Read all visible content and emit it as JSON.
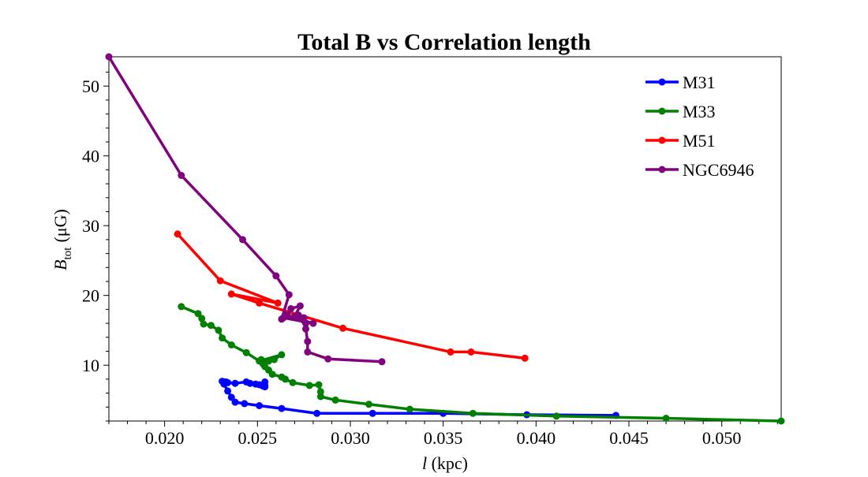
{
  "chart_data": {
    "type": "line",
    "title": "Total B vs Correlation length",
    "xlabel": {
      "var": "l",
      "unit": " (kpc)"
    },
    "ylabel": {
      "var": "B",
      "sub": "tot",
      "unit": "(μG)"
    },
    "xlim": [
      0.017,
      0.0532
    ],
    "ylim": [
      2.0,
      54.2
    ],
    "xticks": [
      0.02,
      0.025,
      0.03,
      0.035,
      0.04,
      0.045,
      0.05
    ],
    "xtick_labels": [
      "0.020",
      "0.025",
      "0.030",
      "0.035",
      "0.040",
      "0.045",
      "0.050"
    ],
    "yticks": [
      10,
      20,
      30,
      40,
      50
    ],
    "ytick_labels": [
      "10",
      "20",
      "30",
      "40",
      "50"
    ],
    "grid": false,
    "legend_position": "top-right",
    "series": [
      {
        "name": "M31",
        "color": "#0000ff",
        "x": [
          0.0443,
          0.0395,
          0.035,
          0.0312,
          0.0282,
          0.0263,
          0.0251,
          0.0243,
          0.0238,
          0.0236,
          0.0234,
          0.0232,
          0.0233,
          0.0231,
          0.0234,
          0.0238,
          0.0244,
          0.0246,
          0.0249,
          0.0251,
          0.0254,
          0.0254,
          0.0253,
          0.0254
        ],
        "y": [
          2.8,
          2.9,
          3.1,
          3.1,
          3.1,
          3.8,
          4.2,
          4.5,
          4.7,
          5.4,
          6.3,
          7.3,
          7.6,
          7.7,
          7.5,
          7.4,
          7.6,
          7.4,
          7.3,
          7.2,
          7.1,
          6.9,
          7.0,
          7.6
        ]
      },
      {
        "name": "M33",
        "color": "#008000",
        "x": [
          0.0532,
          0.047,
          0.0411,
          0.0366,
          0.0332,
          0.031,
          0.0292,
          0.0284,
          0.0284,
          0.0283,
          0.0278,
          0.0269,
          0.0265,
          0.0263,
          0.0258,
          0.0256,
          0.0254,
          0.0253,
          0.0252,
          0.0256,
          0.0259,
          0.0263,
          0.0251,
          0.0244,
          0.0236,
          0.0231,
          0.0229,
          0.0225,
          0.0221,
          0.022,
          0.0218,
          0.0209
        ],
        "y": [
          2.0,
          2.4,
          2.7,
          3.1,
          3.7,
          4.4,
          5.0,
          5.5,
          6.2,
          7.2,
          7.1,
          7.5,
          8.0,
          8.3,
          8.7,
          9.3,
          9.8,
          10.2,
          10.8,
          10.6,
          10.8,
          11.5,
          10.6,
          11.8,
          12.9,
          13.9,
          15.0,
          15.7,
          15.9,
          16.7,
          17.4,
          18.4
        ]
      },
      {
        "name": "M51",
        "color": "#ff0000",
        "x": [
          0.0394,
          0.0365,
          0.0354,
          0.0296,
          0.0251,
          0.0236,
          0.0261,
          0.023,
          0.0207
        ],
        "y": [
          11.0,
          11.9,
          11.9,
          15.3,
          18.9,
          20.2,
          18.9,
          22.1,
          28.8
        ]
      },
      {
        "name": "NGC6946",
        "color": "#800080",
        "x": [
          0.0317,
          0.0288,
          0.0277,
          0.0277,
          0.0276,
          0.0276,
          0.0275,
          0.0272,
          0.0264,
          0.028,
          0.0275,
          0.027,
          0.0273,
          0.0268,
          0.0266,
          0.0263,
          0.0267,
          0.026,
          0.0242,
          0.0209,
          0.017
        ],
        "y": [
          10.5,
          10.9,
          11.9,
          13.4,
          15.2,
          16.0,
          16.8,
          17.2,
          16.8,
          16.0,
          16.4,
          17.0,
          18.5,
          18.1,
          17.2,
          16.6,
          20.1,
          22.8,
          28.0,
          37.2,
          54.2
        ]
      }
    ]
  }
}
